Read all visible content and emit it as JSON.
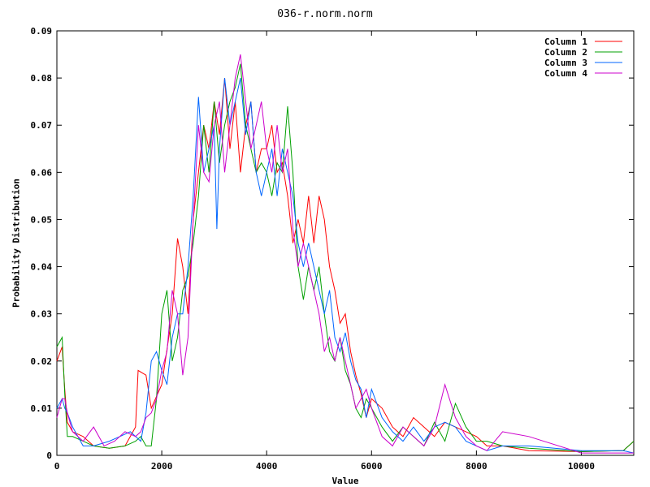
{
  "chart_data": {
    "type": "line",
    "title": "036-r.norm.norm",
    "xlabel": "Value",
    "ylabel": "Probability Distribution",
    "xlim": [
      0,
      11000
    ],
    "ylim": [
      0,
      0.09
    ],
    "xticks": [
      "0",
      "2000",
      "4000",
      "6000",
      "8000",
      "10000"
    ],
    "yticks": [
      "0",
      "0.01",
      "0.02",
      "0.03",
      "0.04",
      "0.05",
      "0.06",
      "0.07",
      "0.08",
      "0.09"
    ],
    "grid": false,
    "legend_position": "top-right",
    "series": [
      {
        "name": "Column 1",
        "color": "#ff0000",
        "points": [
          [
            0,
            0.02
          ],
          [
            100,
            0.023
          ],
          [
            150,
            0.014
          ],
          [
            200,
            0.007
          ],
          [
            300,
            0.005
          ],
          [
            500,
            0.004
          ],
          [
            700,
            0.002
          ],
          [
            1000,
            0.0015
          ],
          [
            1300,
            0.002
          ],
          [
            1500,
            0.006
          ],
          [
            1550,
            0.018
          ],
          [
            1700,
            0.017
          ],
          [
            1800,
            0.01
          ],
          [
            2000,
            0.015
          ],
          [
            2200,
            0.03
          ],
          [
            2300,
            0.046
          ],
          [
            2400,
            0.04
          ],
          [
            2500,
            0.03
          ],
          [
            2600,
            0.05
          ],
          [
            2700,
            0.06
          ],
          [
            2800,
            0.07
          ],
          [
            2900,
            0.065
          ],
          [
            3000,
            0.075
          ],
          [
            3100,
            0.068
          ],
          [
            3200,
            0.08
          ],
          [
            3300,
            0.065
          ],
          [
            3400,
            0.075
          ],
          [
            3500,
            0.06
          ],
          [
            3600,
            0.07
          ],
          [
            3700,
            0.075
          ],
          [
            3800,
            0.06
          ],
          [
            3900,
            0.065
          ],
          [
            4000,
            0.065
          ],
          [
            4100,
            0.07
          ],
          [
            4200,
            0.06
          ],
          [
            4300,
            0.062
          ],
          [
            4400,
            0.055
          ],
          [
            4500,
            0.045
          ],
          [
            4600,
            0.05
          ],
          [
            4700,
            0.045
          ],
          [
            4800,
            0.055
          ],
          [
            4900,
            0.045
          ],
          [
            5000,
            0.055
          ],
          [
            5100,
            0.05
          ],
          [
            5200,
            0.04
          ],
          [
            5300,
            0.035
          ],
          [
            5400,
            0.028
          ],
          [
            5500,
            0.03
          ],
          [
            5600,
            0.022
          ],
          [
            5700,
            0.017
          ],
          [
            5800,
            0.013
          ],
          [
            5900,
            0.008
          ],
          [
            6000,
            0.012
          ],
          [
            6200,
            0.01
          ],
          [
            6400,
            0.006
          ],
          [
            6600,
            0.004
          ],
          [
            6800,
            0.008
          ],
          [
            7000,
            0.006
          ],
          [
            7200,
            0.004
          ],
          [
            7400,
            0.007
          ],
          [
            7600,
            0.006
          ],
          [
            7800,
            0.005
          ],
          [
            8000,
            0.004
          ],
          [
            8200,
            0.002
          ],
          [
            8500,
            0.002
          ],
          [
            9000,
            0.001
          ],
          [
            10000,
            0.0008
          ],
          [
            10800,
            0.001
          ],
          [
            11000,
            0.003
          ]
        ]
      },
      {
        "name": "Column 2",
        "color": "#00a000",
        "points": [
          [
            0,
            0.023
          ],
          [
            100,
            0.025
          ],
          [
            150,
            0.013
          ],
          [
            200,
            0.004
          ],
          [
            300,
            0.004
          ],
          [
            500,
            0.003
          ],
          [
            700,
            0.002
          ],
          [
            1000,
            0.0015
          ],
          [
            1300,
            0.002
          ],
          [
            1500,
            0.003
          ],
          [
            1600,
            0.004
          ],
          [
            1700,
            0.002
          ],
          [
            1800,
            0.002
          ],
          [
            1900,
            0.012
          ],
          [
            2000,
            0.03
          ],
          [
            2100,
            0.035
          ],
          [
            2200,
            0.02
          ],
          [
            2300,
            0.025
          ],
          [
            2400,
            0.035
          ],
          [
            2500,
            0.038
          ],
          [
            2600,
            0.045
          ],
          [
            2700,
            0.055
          ],
          [
            2800,
            0.07
          ],
          [
            2900,
            0.06
          ],
          [
            3000,
            0.075
          ],
          [
            3100,
            0.062
          ],
          [
            3200,
            0.07
          ],
          [
            3300,
            0.075
          ],
          [
            3400,
            0.078
          ],
          [
            3500,
            0.083
          ],
          [
            3600,
            0.07
          ],
          [
            3700,
            0.065
          ],
          [
            3800,
            0.06
          ],
          [
            3900,
            0.062
          ],
          [
            4000,
            0.06
          ],
          [
            4100,
            0.055
          ],
          [
            4200,
            0.062
          ],
          [
            4300,
            0.06
          ],
          [
            4400,
            0.074
          ],
          [
            4500,
            0.06
          ],
          [
            4600,
            0.04
          ],
          [
            4700,
            0.033
          ],
          [
            4800,
            0.04
          ],
          [
            4900,
            0.035
          ],
          [
            5000,
            0.04
          ],
          [
            5100,
            0.03
          ],
          [
            5200,
            0.022
          ],
          [
            5300,
            0.02
          ],
          [
            5400,
            0.025
          ],
          [
            5500,
            0.018
          ],
          [
            5600,
            0.015
          ],
          [
            5700,
            0.01
          ],
          [
            5800,
            0.008
          ],
          [
            5900,
            0.012
          ],
          [
            6000,
            0.01
          ],
          [
            6200,
            0.006
          ],
          [
            6400,
            0.003
          ],
          [
            6600,
            0.006
          ],
          [
            6800,
            0.004
          ],
          [
            7000,
            0.002
          ],
          [
            7200,
            0.007
          ],
          [
            7400,
            0.003
          ],
          [
            7600,
            0.011
          ],
          [
            7800,
            0.006
          ],
          [
            8000,
            0.003
          ],
          [
            8200,
            0.003
          ],
          [
            8500,
            0.002
          ],
          [
            9000,
            0.0015
          ],
          [
            10000,
            0.0008
          ],
          [
            10800,
            0.001
          ],
          [
            11000,
            0.003
          ]
        ]
      },
      {
        "name": "Column 3",
        "color": "#0066ff",
        "points": [
          [
            0,
            0.01
          ],
          [
            100,
            0.012
          ],
          [
            150,
            0.01
          ],
          [
            200,
            0.009
          ],
          [
            300,
            0.006
          ],
          [
            500,
            0.002
          ],
          [
            700,
            0.002
          ],
          [
            1000,
            0.003
          ],
          [
            1200,
            0.004
          ],
          [
            1400,
            0.005
          ],
          [
            1600,
            0.003
          ],
          [
            1700,
            0.009
          ],
          [
            1800,
            0.02
          ],
          [
            1900,
            0.022
          ],
          [
            2000,
            0.018
          ],
          [
            2100,
            0.015
          ],
          [
            2200,
            0.025
          ],
          [
            2300,
            0.03
          ],
          [
            2400,
            0.03
          ],
          [
            2500,
            0.04
          ],
          [
            2600,
            0.055
          ],
          [
            2700,
            0.076
          ],
          [
            2800,
            0.06
          ],
          [
            2900,
            0.065
          ],
          [
            3000,
            0.07
          ],
          [
            3050,
            0.048
          ],
          [
            3100,
            0.065
          ],
          [
            3200,
            0.08
          ],
          [
            3300,
            0.07
          ],
          [
            3400,
            0.075
          ],
          [
            3500,
            0.08
          ],
          [
            3600,
            0.068
          ],
          [
            3700,
            0.075
          ],
          [
            3800,
            0.06
          ],
          [
            3900,
            0.055
          ],
          [
            4000,
            0.06
          ],
          [
            4100,
            0.065
          ],
          [
            4200,
            0.055
          ],
          [
            4300,
            0.065
          ],
          [
            4400,
            0.06
          ],
          [
            4500,
            0.055
          ],
          [
            4600,
            0.045
          ],
          [
            4700,
            0.04
          ],
          [
            4800,
            0.045
          ],
          [
            4900,
            0.04
          ],
          [
            5000,
            0.035
          ],
          [
            5100,
            0.03
          ],
          [
            5200,
            0.035
          ],
          [
            5300,
            0.025
          ],
          [
            5400,
            0.022
          ],
          [
            5500,
            0.026
          ],
          [
            5600,
            0.02
          ],
          [
            5700,
            0.016
          ],
          [
            5800,
            0.014
          ],
          [
            5900,
            0.008
          ],
          [
            6000,
            0.014
          ],
          [
            6200,
            0.008
          ],
          [
            6400,
            0.005
          ],
          [
            6600,
            0.003
          ],
          [
            6800,
            0.006
          ],
          [
            7000,
            0.003
          ],
          [
            7200,
            0.006
          ],
          [
            7400,
            0.007
          ],
          [
            7600,
            0.006
          ],
          [
            7800,
            0.003
          ],
          [
            8000,
            0.002
          ],
          [
            8200,
            0.001
          ],
          [
            8500,
            0.002
          ],
          [
            9000,
            0.002
          ],
          [
            10000,
            0.001
          ],
          [
            10800,
            0.001
          ],
          [
            11000,
            0.0005
          ]
        ]
      },
      {
        "name": "Column 4",
        "color": "#cc00cc",
        "points": [
          [
            0,
            0.008
          ],
          [
            100,
            0.012
          ],
          [
            150,
            0.012
          ],
          [
            200,
            0.009
          ],
          [
            300,
            0.005
          ],
          [
            500,
            0.003
          ],
          [
            700,
            0.006
          ],
          [
            900,
            0.002
          ],
          [
            1100,
            0.003
          ],
          [
            1300,
            0.005
          ],
          [
            1500,
            0.004
          ],
          [
            1600,
            0.005
          ],
          [
            1700,
            0.008
          ],
          [
            1800,
            0.009
          ],
          [
            1900,
            0.012
          ],
          [
            2000,
            0.018
          ],
          [
            2100,
            0.022
          ],
          [
            2200,
            0.035
          ],
          [
            2300,
            0.03
          ],
          [
            2400,
            0.017
          ],
          [
            2500,
            0.025
          ],
          [
            2600,
            0.05
          ],
          [
            2700,
            0.07
          ],
          [
            2800,
            0.06
          ],
          [
            2900,
            0.058
          ],
          [
            3000,
            0.07
          ],
          [
            3100,
            0.075
          ],
          [
            3200,
            0.06
          ],
          [
            3300,
            0.07
          ],
          [
            3400,
            0.08
          ],
          [
            3500,
            0.085
          ],
          [
            3600,
            0.075
          ],
          [
            3700,
            0.065
          ],
          [
            3800,
            0.07
          ],
          [
            3900,
            0.075
          ],
          [
            4000,
            0.065
          ],
          [
            4100,
            0.06
          ],
          [
            4200,
            0.07
          ],
          [
            4300,
            0.06
          ],
          [
            4400,
            0.065
          ],
          [
            4500,
            0.048
          ],
          [
            4600,
            0.04
          ],
          [
            4700,
            0.045
          ],
          [
            4800,
            0.04
          ],
          [
            4900,
            0.035
          ],
          [
            5000,
            0.03
          ],
          [
            5100,
            0.022
          ],
          [
            5200,
            0.025
          ],
          [
            5300,
            0.02
          ],
          [
            5400,
            0.025
          ],
          [
            5500,
            0.02
          ],
          [
            5600,
            0.015
          ],
          [
            5700,
            0.01
          ],
          [
            5800,
            0.012
          ],
          [
            5900,
            0.014
          ],
          [
            6000,
            0.01
          ],
          [
            6200,
            0.004
          ],
          [
            6400,
            0.002
          ],
          [
            6600,
            0.006
          ],
          [
            6800,
            0.004
          ],
          [
            7000,
            0.002
          ],
          [
            7200,
            0.006
          ],
          [
            7400,
            0.015
          ],
          [
            7600,
            0.008
          ],
          [
            7800,
            0.004
          ],
          [
            8000,
            0.002
          ],
          [
            8200,
            0.001
          ],
          [
            8500,
            0.005
          ],
          [
            9000,
            0.004
          ],
          [
            10000,
            0.0005
          ],
          [
            10800,
            0.0005
          ],
          [
            11000,
            0.0005
          ]
        ]
      }
    ]
  }
}
